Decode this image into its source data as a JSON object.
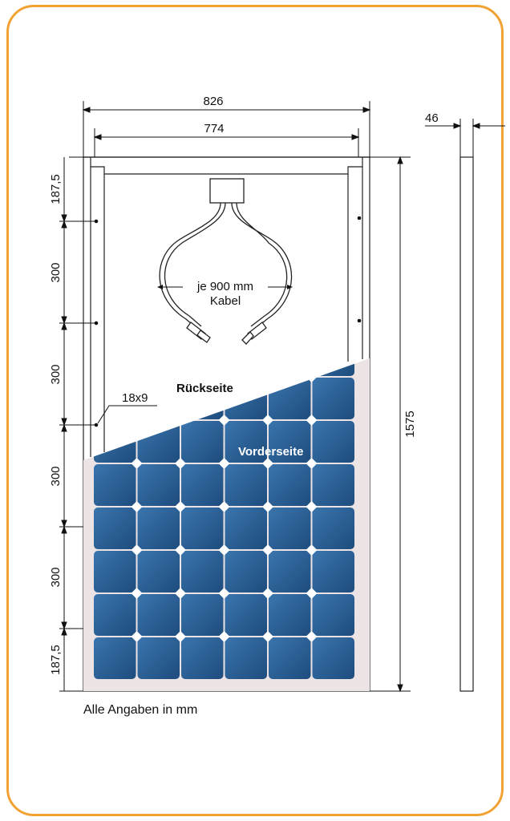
{
  "dimensions": {
    "total_width": "826",
    "inner_width": "774",
    "depth": "46",
    "height": "1575",
    "spacing_top": "187,5",
    "spacing_1": "300",
    "spacing_2": "300",
    "spacing_3": "300",
    "spacing_4": "300",
    "spacing_bottom": "187,5",
    "hole_size": "18x9"
  },
  "labels": {
    "cable_line1": "je 900 mm",
    "cable_line2": "Kabel",
    "back_side": "Rückseite",
    "front_side": "Vorderseite"
  },
  "footnote": "Alle Angaben in mm",
  "colors": {
    "frame_border": "#f2a233",
    "cell_blue": "#2a5f96",
    "cell_dark": "#1d4877",
    "panel_background": "#eae3e3"
  }
}
